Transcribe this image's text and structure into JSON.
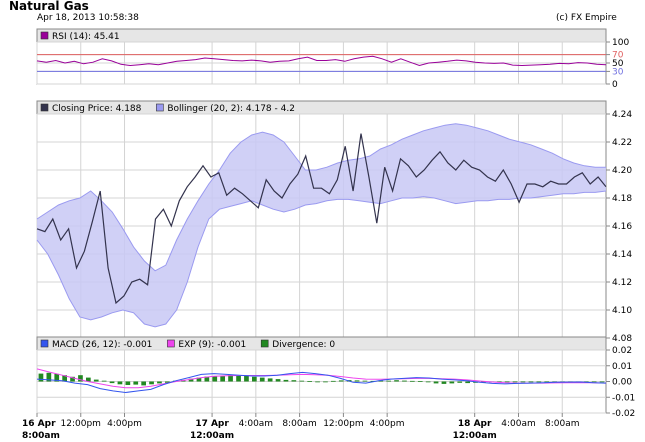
{
  "header": {
    "title": "Natural Gas",
    "timestamp": "Apr 18, 2013 10:58:38",
    "credit": "(c) FX Empire"
  },
  "colors": {
    "price": "#33334d",
    "bollinger_fill": "#c8c8f5",
    "bollinger_line": "#9a9af0",
    "rsi": "#990099",
    "rsi_upper": "#e06060",
    "rsi_lower": "#7070e0",
    "macd": "#3355ee",
    "exp": "#ee44ee",
    "divergence": "#228822",
    "grid": "#d4d4d4",
    "legend_bg": "#e6e6e6"
  },
  "chart_data": [
    {
      "type": "line",
      "panel": "rsi",
      "legend": [
        {
          "label": "RSI (14): 45.41",
          "swatch": "#990099"
        }
      ],
      "ylim": [
        0,
        100
      ],
      "yticks": [
        "100",
        "70",
        "50",
        "30",
        "0"
      ],
      "ytick_values": [
        100,
        70,
        50,
        30,
        0
      ],
      "levels": [
        {
          "value": 70,
          "color": "#e06060"
        },
        {
          "value": 30,
          "color": "#7070e0"
        }
      ],
      "series": [
        {
          "values": [
            55,
            52,
            56,
            50,
            54,
            48,
            52,
            60,
            55,
            47,
            44,
            46,
            48,
            46,
            50,
            54,
            56,
            58,
            62,
            60,
            58,
            56,
            55,
            57,
            55,
            52,
            54,
            55,
            60,
            64,
            56,
            56,
            58,
            54,
            60,
            64,
            66,
            60,
            52,
            60,
            52,
            44,
            50,
            52,
            54,
            57,
            55,
            52,
            50,
            49,
            50,
            45,
            44,
            45,
            46,
            47,
            49,
            48,
            51,
            50,
            47,
            46
          ]
        }
      ]
    },
    {
      "type": "line",
      "panel": "price",
      "legend": [
        {
          "label": "Closing Price: 4.188",
          "swatch": "#33334d"
        },
        {
          "label": "Bollinger (20, 2): 4.178 - 4.2",
          "swatch": "#9a9af0"
        }
      ],
      "ylim": [
        4.08,
        4.24
      ],
      "yticks": [
        "4.24",
        "4.22",
        "4.20",
        "4.18",
        "4.16",
        "4.14",
        "4.12",
        "4.10",
        "4.08"
      ],
      "ytick_values": [
        4.24,
        4.22,
        4.2,
        4.18,
        4.16,
        4.14,
        4.12,
        4.1,
        4.08
      ],
      "series": [
        {
          "values": [
            4.158,
            4.156,
            4.165,
            4.15,
            4.158,
            4.13,
            4.142,
            4.163,
            4.185,
            4.13,
            4.105,
            4.11,
            4.12,
            4.122,
            4.118,
            4.165,
            4.172,
            4.16,
            4.178,
            4.188,
            4.195,
            4.203,
            4.195,
            4.198,
            4.182,
            4.187,
            4.183,
            4.178,
            4.173,
            4.193,
            4.185,
            4.18,
            4.19,
            4.197,
            4.21,
            4.187,
            4.187,
            4.183,
            4.193,
            4.217,
            4.185,
            4.226,
            4.195,
            4.162,
            4.202,
            4.185,
            4.208,
            4.203,
            4.195,
            4.2,
            4.207,
            4.213,
            4.205,
            4.2,
            4.207,
            4.202,
            4.2,
            4.195,
            4.192,
            4.2,
            4.19,
            4.177,
            4.19,
            4.19,
            4.188,
            4.192,
            4.19,
            4.19,
            4.195,
            4.198,
            4.19,
            4.195,
            4.188
          ]
        }
      ],
      "band_upper": [
        4.165,
        4.17,
        4.175,
        4.178,
        4.18,
        4.185,
        4.178,
        4.17,
        4.158,
        4.145,
        4.135,
        4.128,
        4.132,
        4.15,
        4.165,
        4.178,
        4.19,
        4.2,
        4.212,
        4.22,
        4.225,
        4.227,
        4.225,
        4.22,
        4.21,
        4.2,
        4.2,
        4.202,
        4.205,
        4.207,
        4.208,
        4.21,
        4.215,
        4.218,
        4.222,
        4.225,
        4.228,
        4.23,
        4.232,
        4.233,
        4.232,
        4.23,
        4.228,
        4.225,
        4.222,
        4.22,
        4.218,
        4.215,
        4.212,
        4.208,
        4.205,
        4.203,
        4.202,
        4.202
      ],
      "band_lower": [
        4.15,
        4.14,
        4.125,
        4.108,
        4.095,
        4.093,
        4.095,
        4.098,
        4.1,
        4.098,
        4.09,
        4.088,
        4.09,
        4.1,
        4.12,
        4.145,
        4.165,
        4.172,
        4.174,
        4.176,
        4.178,
        4.175,
        4.172,
        4.17,
        4.172,
        4.175,
        4.176,
        4.178,
        4.179,
        4.179,
        4.178,
        4.177,
        4.176,
        4.178,
        4.18,
        4.18,
        4.181,
        4.18,
        4.178,
        4.176,
        4.177,
        4.178,
        4.178,
        4.179,
        4.179,
        4.18,
        4.18,
        4.181,
        4.182,
        4.183,
        4.183,
        4.184,
        4.184,
        4.185
      ]
    },
    {
      "type": "line",
      "panel": "macd",
      "legend": [
        {
          "label": "MACD (26, 12): -0.001",
          "swatch": "#3355ee"
        },
        {
          "label": "EXP (9): -0.001",
          "swatch": "#ee44ee"
        },
        {
          "label": "Divergence: 0",
          "swatch": "#228822"
        }
      ],
      "ylim": [
        -0.02,
        0.02
      ],
      "yticks": [
        "0.02",
        "0.01",
        "0.00",
        "-0.01",
        "-0.02"
      ],
      "ytick_values": [
        0.02,
        0.01,
        0.0,
        -0.01,
        -0.02
      ],
      "series": [
        {
          "name": "MACD (26, 12)",
          "values": [
            0.0015,
            0.001,
            0.0005,
            -0.001,
            -0.002,
            -0.0045,
            -0.006,
            -0.007,
            -0.006,
            -0.005,
            -0.002,
            0.0005,
            0.0025,
            0.0045,
            0.005,
            0.0045,
            0.004,
            0.0035,
            0.0035,
            0.004,
            0.005,
            0.0058,
            0.005,
            0.004,
            0.002,
            -0.0005,
            -0.001,
            0.0005,
            0.0015,
            0.002,
            0.0025,
            0.0022,
            0.0015,
            0.001,
            0.0005,
            -0.0005,
            -0.0012,
            -0.0015,
            -0.0012,
            -0.001,
            -0.0008,
            -0.0005,
            -0.0004,
            -0.0003,
            -0.0008,
            -0.001
          ]
        },
        {
          "name": "EXP (9)",
          "values": [
            0.008,
            0.006,
            0.004,
            0.002,
            0.0,
            -0.0015,
            -0.003,
            -0.004,
            -0.004,
            -0.003,
            -0.0015,
            0.0,
            0.0012,
            0.0025,
            0.0033,
            0.0037,
            0.0038,
            0.0038,
            0.0038,
            0.004,
            0.0043,
            0.0045,
            0.0043,
            0.004,
            0.0032,
            0.0022,
            0.0015,
            0.0014,
            0.0016,
            0.0018,
            0.002,
            0.002,
            0.0018,
            0.0015,
            0.001,
            0.0003,
            -0.0003,
            -0.0008,
            -0.001,
            -0.001,
            -0.001,
            -0.0009,
            -0.0008,
            -0.0007,
            -0.0008,
            -0.001
          ]
        },
        {
          "name": "Divergence",
          "values": [
            0.005,
            0.0055,
            0.0048,
            0.004,
            0.003,
            0.004,
            0.0025,
            0.0012,
            0.0005,
            -0.001,
            -0.0018,
            -0.0022,
            -0.002,
            -0.0025,
            -0.0018,
            -0.0012,
            -0.0008,
            0.0005,
            0.001,
            0.0018,
            0.0025,
            0.0032,
            0.0035,
            0.0038,
            0.0042,
            0.004,
            0.0035,
            0.003,
            0.0025,
            0.002,
            0.0015,
            0.001,
            0.0008,
            0.0005,
            0.0002,
            0.0,
            -0.0002,
            0.0004,
            0.0007,
            0.0009,
            0.0007,
            0.0005,
            0.0004,
            0.0006,
            0.0005,
            0.0008,
            0.0006,
            0.0004,
            0.0002,
            -0.0004,
            -0.0012,
            -0.0015,
            -0.0012,
            -0.0008,
            -0.001,
            -0.0008,
            -0.0006,
            -0.0004,
            -0.0004,
            -0.0005,
            -0.0003,
            -0.0002,
            -0.0003,
            -0.0004,
            -0.0003,
            -0.0002,
            -0.0003,
            -0.0004,
            -0.0002,
            -0.0003,
            -0.0002,
            -0.0001
          ]
        }
      ]
    }
  ],
  "x_axis": {
    "ticks": [
      {
        "label": "16 Apr",
        "sublabel": "8:00am",
        "bold": true,
        "frac": 0.0
      },
      {
        "label": "12:00pm",
        "sublabel": "",
        "bold": false,
        "frac": 0.0769
      },
      {
        "label": "4:00pm",
        "sublabel": "",
        "bold": false,
        "frac": 0.1538
      },
      {
        "label": "17 Apr",
        "sublabel": "12:00am",
        "bold": true,
        "frac": 0.3077
      },
      {
        "label": "4:00am",
        "sublabel": "",
        "bold": false,
        "frac": 0.3846
      },
      {
        "label": "8:00am",
        "sublabel": "",
        "bold": false,
        "frac": 0.4615
      },
      {
        "label": "12:00pm",
        "sublabel": "",
        "bold": false,
        "frac": 0.5385
      },
      {
        "label": "4:00pm",
        "sublabel": "",
        "bold": false,
        "frac": 0.6154
      },
      {
        "label": "18 Apr",
        "sublabel": "12:00am",
        "bold": true,
        "frac": 0.7692
      },
      {
        "label": "4:00am",
        "sublabel": "",
        "bold": false,
        "frac": 0.8462
      },
      {
        "label": "8:00am",
        "sublabel": "",
        "bold": false,
        "frac": 0.9231
      }
    ]
  }
}
